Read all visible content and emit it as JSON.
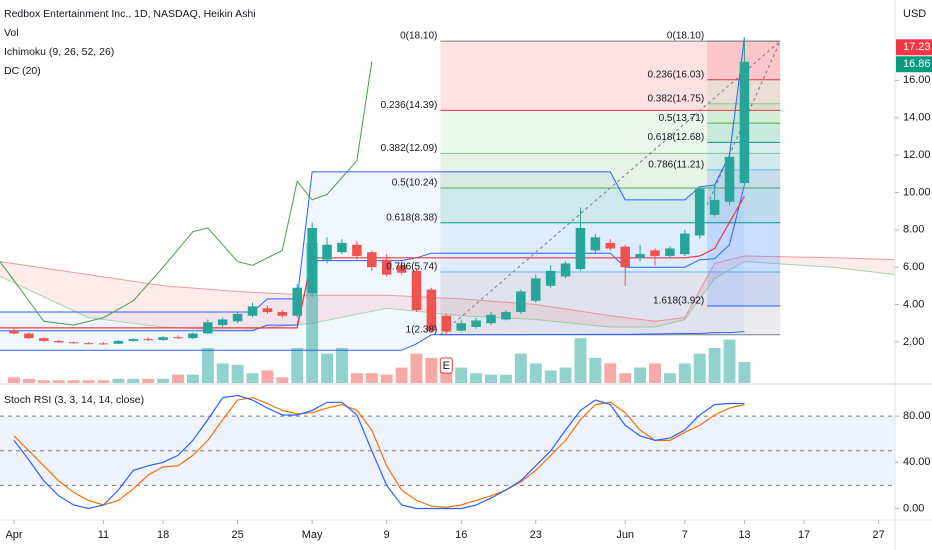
{
  "chart_data": {
    "type": "candlestick",
    "title": "Redbox Entertainment Inc., 1D, NASDAQ, Heikin Ashi",
    "legend": [
      "Vol",
      "Ichimoku (9, 26, 52, 26)",
      "DC (20)"
    ],
    "y_label": "USD",
    "xlim": [
      -0.94,
      59.1
    ],
    "xticks": [
      {
        "value": 0,
        "label": "Apr"
      },
      {
        "value": 6,
        "label": "11"
      },
      {
        "value": 10,
        "label": "18"
      },
      {
        "value": 15,
        "label": "25"
      },
      {
        "value": 20,
        "label": "May"
      },
      {
        "value": 25,
        "label": "9"
      },
      {
        "value": 30,
        "label": "16"
      },
      {
        "value": 35,
        "label": "23"
      },
      {
        "value": 41,
        "label": "Jun"
      },
      {
        "value": 45,
        "label": "7"
      },
      {
        "value": 49,
        "label": "13"
      },
      {
        "value": 53,
        "label": "17"
      },
      {
        "value": 58,
        "label": "27"
      }
    ],
    "ylim": [
      -0.2,
      20.3
    ],
    "yticks": [
      {
        "value": 2,
        "label": "2.00"
      },
      {
        "value": 4,
        "label": "4.00"
      },
      {
        "value": 6,
        "label": "6.00"
      },
      {
        "value": 8,
        "label": "8.00"
      },
      {
        "value": 10,
        "label": "10.00"
      },
      {
        "value": 12,
        "label": "12.00"
      },
      {
        "value": 14,
        "label": "14.00"
      },
      {
        "value": 16,
        "label": "16.00"
      }
    ],
    "up_color": "#26a69a",
    "down_color": "#ef5350",
    "open": [
      2.6,
      2.45,
      2.2,
      2.05,
      1.98,
      1.93,
      1.92,
      1.9,
      2.05,
      2.15,
      2.1,
      2.25,
      2.2,
      2.45,
      2.9,
      3.1,
      3.4,
      3.8,
      3.6,
      3.4,
      4.6,
      6.4,
      6.8,
      7.2,
      6.8,
      6.4,
      6.1,
      5.8,
      4.8,
      3.4,
      2.6,
      2.8,
      3.0,
      3.2,
      3.6,
      4.2,
      5.0,
      5.5,
      5.9,
      6.9,
      7.3,
      7.1,
      6.5,
      6.9,
      6.6,
      6.7,
      7.7,
      8.8,
      9.5,
      10.5
    ],
    "high": [
      2.75,
      2.5,
      2.25,
      2.1,
      2.02,
      1.98,
      1.98,
      2.1,
      2.2,
      2.25,
      2.3,
      2.35,
      2.5,
      3.2,
      3.3,
      3.6,
      4.1,
      3.95,
      3.7,
      5.1,
      8.4,
      7.6,
      7.5,
      7.4,
      6.9,
      6.7,
      6.3,
      5.9,
      4.9,
      3.5,
      3.2,
      3.3,
      3.6,
      3.7,
      4.8,
      5.6,
      6.1,
      6.3,
      9.2,
      7.8,
      7.5,
      7.2,
      7.2,
      7.0,
      7.1,
      8.0,
      10.3,
      10.4,
      12.0,
      18.3
    ],
    "low": [
      2.4,
      2.15,
      2.0,
      1.95,
      1.9,
      1.88,
      1.85,
      1.88,
      2.0,
      2.05,
      2.05,
      2.15,
      2.15,
      2.4,
      2.8,
      3.0,
      3.3,
      3.5,
      3.3,
      3.3,
      4.4,
      6.2,
      6.7,
      6.4,
      5.8,
      5.5,
      5.6,
      3.6,
      2.5,
      2.4,
      2.55,
      2.7,
      2.9,
      3.15,
      3.5,
      4.1,
      4.9,
      5.4,
      5.8,
      6.7,
      6.9,
      5.0,
      6.3,
      6.1,
      6.5,
      6.6,
      7.5,
      8.7,
      9.3,
      10.4
    ],
    "close": [
      2.45,
      2.2,
      2.05,
      1.98,
      1.93,
      1.92,
      1.9,
      2.05,
      2.15,
      2.1,
      2.25,
      2.2,
      2.45,
      3.05,
      3.2,
      3.5,
      3.9,
      3.6,
      3.4,
      4.9,
      8.1,
      7.2,
      7.3,
      6.6,
      6.0,
      5.6,
      5.7,
      3.7,
      2.6,
      2.55,
      3.0,
      3.15,
      3.45,
      3.6,
      4.7,
      5.4,
      5.8,
      6.2,
      8.1,
      7.6,
      7.0,
      6.0,
      6.7,
      6.6,
      7.0,
      7.8,
      10.2,
      9.6,
      11.9,
      17.0
    ],
    "volume": {
      "ylim": [
        0,
        100
      ],
      "values": [
        4,
        3,
        2,
        2,
        2,
        2,
        2,
        3,
        3,
        3,
        3,
        6,
        6,
        25,
        14,
        13,
        7,
        9,
        4,
        25,
        100,
        21,
        25,
        7,
        7,
        6,
        11,
        21,
        18,
        16,
        11,
        7,
        6,
        6,
        21,
        14,
        9,
        11,
        32,
        18,
        14,
        7,
        11,
        14,
        7,
        14,
        21,
        25,
        31,
        15
      ]
    },
    "price_labels": [
      {
        "value": 17.23,
        "label": "17.23",
        "color": "#f23645",
        "dotted": false
      },
      {
        "value": 16.86,
        "label": "16.86",
        "color": "#089981",
        "dotted": true
      }
    ],
    "ichimoku": {
      "x": [
        -0.94,
        5,
        10,
        15,
        20,
        25,
        30,
        35,
        40,
        43,
        45,
        47,
        49,
        55,
        59.1
      ],
      "span_a": [
        5.5,
        3.3,
        2.8,
        2.6,
        3.0,
        3.8,
        3.4,
        3.2,
        2.8,
        2.8,
        3.2,
        5.4,
        6.3,
        6.0,
        5.6
      ],
      "span_b": [
        6.3,
        5.6,
        5.0,
        4.7,
        4.5,
        4.5,
        4.3,
        4.0,
        3.4,
        3.1,
        3.3,
        6.2,
        6.6,
        6.5,
        6.4
      ],
      "base": {
        "color": "#f23645",
        "x": [
          -0.94,
          19,
          20,
          45,
          46,
          47,
          48,
          49
        ],
        "values": [
          2.75,
          2.75,
          6.5,
          6.5,
          6.6,
          7.0,
          8.4,
          9.8
        ]
      },
      "chikou": {
        "color": "#43a047",
        "x": [
          -0.94,
          1,
          2,
          4,
          6,
          8,
          10,
          12,
          13,
          15,
          16,
          18,
          19,
          20,
          21,
          22,
          23,
          24
        ],
        "values": [
          6.3,
          4.2,
          3.1,
          2.9,
          3.3,
          4.2,
          6.0,
          7.9,
          8.1,
          6.3,
          6.1,
          6.9,
          10.6,
          9.6,
          9.9,
          10.8,
          11.7,
          17.0
        ]
      }
    },
    "dc": {
      "color": "#2962ff",
      "x": [
        -0.94,
        16,
        17,
        19,
        20,
        26,
        27,
        28,
        40,
        41,
        45,
        46,
        47,
        48,
        49
      ],
      "upper": [
        3.6,
        3.6,
        4.3,
        4.3,
        11.1,
        11.1,
        11.1,
        11.1,
        11.1,
        9.6,
        9.6,
        10.3,
        10.4,
        12.0,
        18.3
      ],
      "lower": [
        1.55,
        1.55,
        1.55,
        1.55,
        1.55,
        1.55,
        1.9,
        2.38,
        2.4,
        2.4,
        2.45,
        2.45,
        2.5,
        2.5,
        2.55
      ],
      "basis": [
        2.6,
        2.6,
        2.9,
        2.9,
        6.35,
        6.35,
        6.5,
        6.75,
        6.75,
        6.0,
        6.0,
        6.4,
        6.45,
        7.2,
        10.4
      ]
    },
    "fibs": [
      {
        "x": [
          28.6,
          51.4
        ],
        "anchors": {
          "price": [
            2.38,
            18.1
          ]
        },
        "levels": [
          {
            "value": 18.1,
            "label": "0(18.10)",
            "color": "#787b86"
          },
          {
            "value": 14.39,
            "label": "0.236(14.39)",
            "color": "#f23645"
          },
          {
            "value": 12.09,
            "label": "0.382(12.09)",
            "color": "#81c784"
          },
          {
            "value": 10.24,
            "label": "0.5(10.24)",
            "color": "#4caf50"
          },
          {
            "value": 8.38,
            "label": "0.618(8.38)",
            "color": "#089981"
          },
          {
            "value": 5.74,
            "label": "0.786(5.74)",
            "color": "#64b5f6"
          },
          {
            "value": 2.38,
            "label": "1(2.38)",
            "color": "#787b86"
          }
        ]
      },
      {
        "x": [
          46.5,
          51.4
        ],
        "anchors": {
          "price": [
            9.33,
            18.1
          ]
        },
        "levels": [
          {
            "value": 18.1,
            "label": "0(18.10)",
            "color": "#787b86"
          },
          {
            "value": 16.03,
            "label": "0.236(16.03)",
            "color": "#f23645"
          },
          {
            "value": 14.75,
            "label": "0.382(14.75)",
            "color": "#81c784"
          },
          {
            "value": 13.71,
            "label": "0.5(13.71)",
            "color": "#4caf50"
          },
          {
            "value": 12.68,
            "label": "0.618(12.68)",
            "color": "#089981"
          },
          {
            "value": 11.21,
            "label": "0.786(11.21)",
            "color": "#64b5f6"
          },
          {
            "value": 3.92,
            "label": "1.618(3.92)",
            "color": "#2962ff"
          }
        ]
      }
    ],
    "events": [
      {
        "x": 29,
        "label": "E"
      }
    ],
    "stoch": {
      "title": "Stoch RSI (3, 3, 14, 14, close)",
      "ylim": [
        -10,
        107
      ],
      "yticks": [
        {
          "value": 80,
          "label": "80.00"
        },
        {
          "value": 40,
          "label": "40.00"
        },
        {
          "value": 0,
          "label": "0.00"
        }
      ],
      "bands": [
        80,
        50,
        20
      ],
      "k": {
        "color": "#2962ff",
        "values": [
          59,
          42,
          24,
          11,
          3,
          0,
          3,
          16,
          33,
          37,
          40,
          46,
          59,
          77,
          96,
          98,
          94,
          87,
          81,
          81,
          85,
          92,
          92,
          81,
          50,
          20,
          3,
          0,
          0,
          0,
          0,
          3,
          9,
          16,
          24,
          37,
          50,
          68,
          85,
          94,
          90,
          72,
          63,
          59,
          61,
          68,
          81,
          90,
          91,
          91
        ]
      },
      "d": {
        "color": "#ff6d00",
        "values": [
          63,
          50,
          37,
          24,
          14,
          7,
          3,
          7,
          17,
          29,
          36,
          37,
          46,
          59,
          77,
          94,
          96,
          91,
          85,
          82,
          83,
          87,
          90,
          85,
          68,
          37,
          16,
          7,
          2,
          1,
          3,
          7,
          11,
          16,
          23,
          33,
          46,
          59,
          77,
          90,
          92,
          83,
          68,
          59,
          59,
          66,
          72,
          81,
          87,
          90
        ]
      }
    }
  }
}
